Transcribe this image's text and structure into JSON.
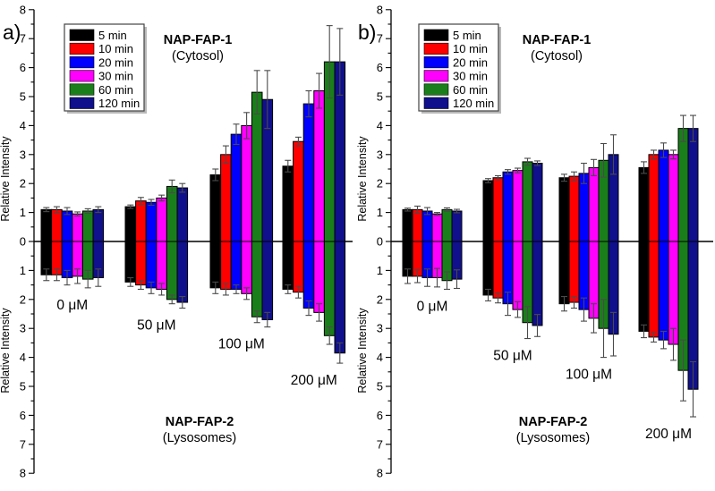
{
  "figure": {
    "background": "#ffffff",
    "axis_color": "#000000",
    "error_bar_color": "#4a4a4a"
  },
  "legend": {
    "items": [
      {
        "label": "5 min",
        "color": "#000000"
      },
      {
        "label": "10 min",
        "color": "#fe0000"
      },
      {
        "label": "20 min",
        "color": "#0000fe"
      },
      {
        "label": "30 min",
        "color": "#ff00ff"
      },
      {
        "label": "60 min",
        "color": "#1a7e1a"
      },
      {
        "label": "120 min",
        "color": "#10108c"
      }
    ]
  },
  "chart_data": [
    {
      "panel_label": "a)",
      "type": "bar",
      "upper_region": {
        "title": "NAP-FAP-1",
        "subtitle": "(Cytosol)"
      },
      "lower_region": {
        "title": "NAP-FAP-2",
        "subtitle": "(Lysosomes)"
      },
      "ylabel": "Relative Intensity",
      "ylim": [
        -8,
        8
      ],
      "ytick_interval": 1,
      "grid": false,
      "legend_position": "top-left",
      "categories": [
        "0 μM",
        "50 μM",
        "100 μM",
        "200 μM"
      ],
      "series": [
        {
          "name": "5 min",
          "color": "#000000",
          "upper_values": [
            1.1,
            1.2,
            2.3,
            2.6
          ],
          "upper_errors": [
            0.07,
            0.06,
            0.2,
            0.2
          ],
          "lower_values": [
            -1.15,
            -1.4,
            -1.6,
            -1.65
          ],
          "lower_errors": [
            0.2,
            0.15,
            0.2,
            0.15
          ]
        },
        {
          "name": "10 min",
          "color": "#fe0000",
          "upper_values": [
            1.1,
            1.4,
            3.0,
            3.45
          ],
          "upper_errors": [
            0.1,
            0.12,
            0.3,
            0.15
          ],
          "lower_values": [
            -1.15,
            -1.5,
            -1.65,
            -1.75
          ],
          "lower_errors": [
            0.2,
            0.15,
            0.2,
            0.2
          ]
        },
        {
          "name": "20 min",
          "color": "#0000fe",
          "upper_values": [
            1.05,
            1.35,
            3.7,
            4.75
          ],
          "upper_errors": [
            0.12,
            0.1,
            0.35,
            0.45
          ],
          "lower_values": [
            -1.25,
            -1.6,
            -1.65,
            -2.3
          ],
          "lower_errors": [
            0.25,
            0.2,
            0.15,
            0.25
          ]
        },
        {
          "name": "30 min",
          "color": "#ff00ff",
          "upper_values": [
            0.95,
            1.5,
            4.0,
            5.2
          ],
          "upper_errors": [
            0.07,
            0.1,
            0.45,
            0.6
          ],
          "lower_values": [
            -1.2,
            -1.65,
            -1.8,
            -2.45
          ],
          "lower_errors": [
            0.25,
            0.2,
            0.2,
            0.3
          ]
        },
        {
          "name": "60 min",
          "color": "#1a7e1a",
          "upper_values": [
            1.05,
            1.9,
            5.15,
            6.2
          ],
          "upper_errors": [
            0.08,
            0.22,
            0.75,
            1.25
          ],
          "lower_values": [
            -1.3,
            -2.0,
            -2.6,
            -3.25
          ],
          "lower_errors": [
            0.3,
            0.15,
            0.2,
            0.3
          ]
        },
        {
          "name": "120 min",
          "color": "#10108c",
          "upper_values": [
            1.1,
            1.85,
            4.9,
            6.2
          ],
          "upper_errors": [
            0.1,
            0.15,
            1.0,
            1.15
          ],
          "lower_values": [
            -1.25,
            -2.1,
            -2.7,
            -3.85
          ],
          "lower_errors": [
            0.3,
            0.2,
            0.25,
            0.35
          ]
        }
      ]
    },
    {
      "panel_label": "b)",
      "type": "bar",
      "upper_region": {
        "title": "NAP-FAP-1",
        "subtitle": "(Cytosol)"
      },
      "lower_region": {
        "title": "NAP-FAP-2",
        "subtitle": "(Lysosomes)"
      },
      "ylabel": "Relative Intensity",
      "ylim": [
        -8,
        8
      ],
      "ytick_interval": 1,
      "grid": false,
      "legend_position": "top-left",
      "categories": [
        "0 μM",
        "50 μM",
        "100 μM",
        "200 μM"
      ],
      "series": [
        {
          "name": "5 min",
          "color": "#000000",
          "upper_values": [
            1.1,
            2.1,
            2.2,
            2.55
          ],
          "upper_errors": [
            0.05,
            0.07,
            0.12,
            0.2
          ],
          "lower_values": [
            -1.2,
            -1.85,
            -2.15,
            -3.1
          ],
          "lower_errors": [
            0.25,
            0.2,
            0.25,
            0.22
          ]
        },
        {
          "name": "10 min",
          "color": "#fe0000",
          "upper_values": [
            1.1,
            2.2,
            2.25,
            3.0
          ],
          "upper_errors": [
            0.12,
            0.07,
            0.15,
            0.15
          ],
          "lower_values": [
            -1.2,
            -1.95,
            -2.1,
            -3.3
          ],
          "lower_errors": [
            0.22,
            0.17,
            0.2,
            0.17
          ]
        },
        {
          "name": "20 min",
          "color": "#0000fe",
          "upper_values": [
            1.05,
            2.4,
            2.35,
            3.15
          ],
          "upper_errors": [
            0.12,
            0.08,
            0.35,
            0.25
          ],
          "lower_values": [
            -1.25,
            -2.15,
            -2.35,
            -3.4
          ],
          "lower_errors": [
            0.3,
            0.4,
            0.4,
            0.3
          ]
        },
        {
          "name": "30 min",
          "color": "#ff00ff",
          "upper_values": [
            0.95,
            2.45,
            2.55,
            3.0
          ],
          "upper_errors": [
            0.05,
            0.08,
            0.28,
            0.15
          ],
          "lower_values": [
            -1.25,
            -2.35,
            -2.65,
            -3.55
          ],
          "lower_errors": [
            0.32,
            0.27,
            0.5,
            0.55
          ]
        },
        {
          "name": "60 min",
          "color": "#1a7e1a",
          "upper_values": [
            1.1,
            2.75,
            2.8,
            3.9
          ],
          "upper_errors": [
            0.06,
            0.12,
            0.58,
            0.45
          ],
          "lower_values": [
            -1.35,
            -2.8,
            -3.0,
            -4.45
          ],
          "lower_errors": [
            0.3,
            0.55,
            1.0,
            1.05
          ]
        },
        {
          "name": "120 min",
          "color": "#10108c",
          "upper_values": [
            1.05,
            2.7,
            3.0,
            3.9
          ],
          "upper_errors": [
            0.06,
            0.08,
            0.68,
            0.45
          ],
          "lower_values": [
            -1.3,
            -2.9,
            -3.2,
            -5.1
          ],
          "lower_errors": [
            0.32,
            0.38,
            0.75,
            0.95
          ]
        }
      ]
    }
  ]
}
